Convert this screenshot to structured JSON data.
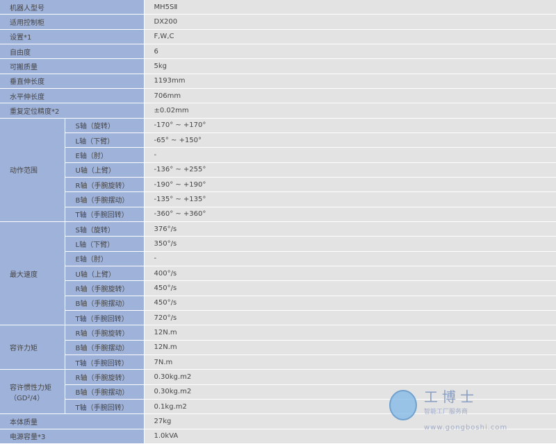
{
  "colors": {
    "label_bg": "#9fb2da",
    "value_bg": "#e3e3e3",
    "text": "#444444"
  },
  "rows": [
    {
      "label": "机器人型号",
      "value": "MH5SⅡ"
    },
    {
      "label": "适用控制柜",
      "value": "DX200"
    },
    {
      "label": "设置*1",
      "value": "F,W,C"
    },
    {
      "label": "自由度",
      "value": "6"
    },
    {
      "label": "可搬质量",
      "value": "5kg"
    },
    {
      "label": "垂直伸长度",
      "value": "1193mm"
    },
    {
      "label": "水平伸长度",
      "value": "706mm"
    },
    {
      "label": "重复定位精度*2",
      "value": "±0.02mm"
    },
    {
      "group": "动作范围",
      "items": [
        {
          "axis": "S轴（旋转）",
          "value": "-170° ~ +170°"
        },
        {
          "axis": "L轴（下臂）",
          "value": "-65° ~ +150°"
        },
        {
          "axis": "E轴（肘）",
          "value": "-"
        },
        {
          "axis": "U轴（上臂）",
          "value": "-136° ~ +255°"
        },
        {
          "axis": "R轴（手腕旋转）",
          "value": "-190° ~ +190°"
        },
        {
          "axis": "B轴（手腕摆动）",
          "value": "-135° ~ +135°"
        },
        {
          "axis": "T轴（手腕回转）",
          "value": "-360° ~ +360°"
        }
      ]
    },
    {
      "group": "最大速度",
      "items": [
        {
          "axis": "S轴（旋转）",
          "value": "376°/s"
        },
        {
          "axis": "L轴（下臂）",
          "value": "350°/s"
        },
        {
          "axis": "E轴（肘）",
          "value": "-"
        },
        {
          "axis": "U轴（上臂）",
          "value": "400°/s"
        },
        {
          "axis": "R轴（手腕旋转）",
          "value": "450°/s"
        },
        {
          "axis": "B轴（手腕摆动）",
          "value": "450°/s"
        },
        {
          "axis": "T轴（手腕回转）",
          "value": "720°/s"
        }
      ]
    },
    {
      "group": "容许力矩",
      "items": [
        {
          "axis": "R轴（手腕旋转）",
          "value": "12N.m"
        },
        {
          "axis": "B轴（手腕摆动）",
          "value": "12N.m"
        },
        {
          "axis": "T轴（手腕回转）",
          "value": "7N.m"
        }
      ]
    },
    {
      "group": "容许惯性力矩（GD²/4）",
      "items": [
        {
          "axis": "R轴（手腕旋转）",
          "value": "0.30kg.m2"
        },
        {
          "axis": "B轴（手腕摆动）",
          "value": "0.30kg.m2"
        },
        {
          "axis": "T轴（手腕回转）",
          "value": "0.1kg.m2"
        }
      ]
    },
    {
      "label": "本体质量",
      "value": "27kg"
    },
    {
      "label": "电源容量*3",
      "value": "1.0kVA"
    }
  ],
  "watermark": {
    "brand": "工博士",
    "tagline": "智能工厂服务商",
    "url": "www.gongboshi.com"
  }
}
